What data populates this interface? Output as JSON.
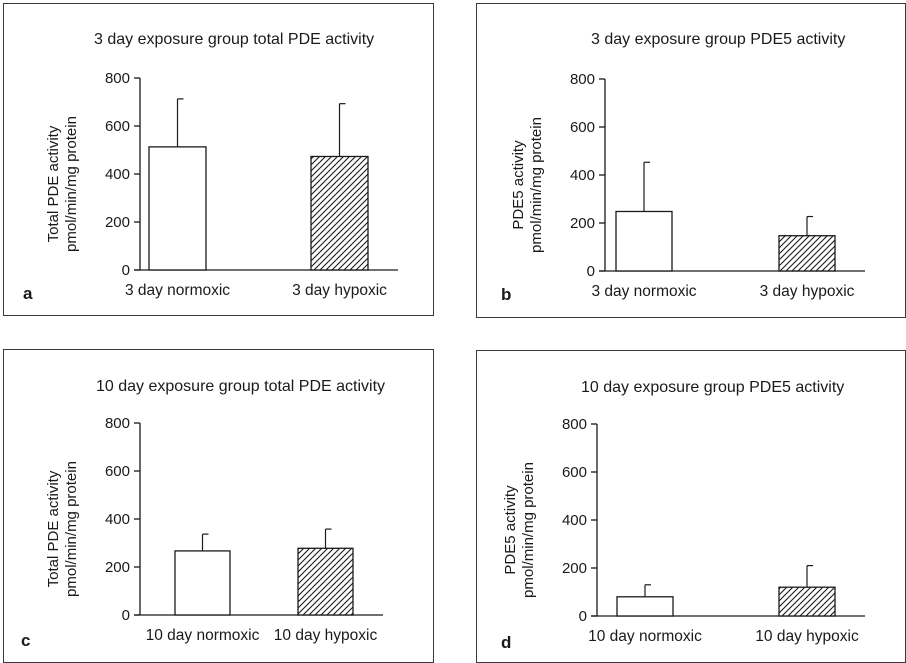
{
  "chart_data": [
    {
      "id": "a",
      "type": "bar",
      "panel_letter": "a",
      "title": "3 day exposure group total PDE activity",
      "ylabel": [
        "Total PDE activity",
        "pmol/min/mg protein"
      ],
      "categories": [
        "3 day normoxic",
        "3 day hypoxic"
      ],
      "values": [
        513,
        473
      ],
      "errors": [
        200,
        220
      ],
      "patterns": [
        "none",
        "hatched"
      ],
      "ylim": [
        0,
        800
      ],
      "yticks": [
        0,
        200,
        400,
        600,
        800
      ]
    },
    {
      "id": "b",
      "type": "bar",
      "panel_letter": "b",
      "title": "3 day exposure group PDE5 activity",
      "ylabel": [
        "PDE5 activity",
        "pmol/min/mg protein"
      ],
      "categories": [
        "3 day normoxic",
        "3 day hypoxic"
      ],
      "values": [
        248,
        147
      ],
      "errors": [
        205,
        80
      ],
      "patterns": [
        "none",
        "hatched"
      ],
      "ylim": [
        0,
        800
      ],
      "yticks": [
        0,
        200,
        400,
        600,
        800
      ]
    },
    {
      "id": "c",
      "type": "bar",
      "panel_letter": "c",
      "title": "10 day exposure group total PDE activity",
      "ylabel": [
        "Total PDE activity",
        "pmol/min/mg protein"
      ],
      "categories": [
        "10 day normoxic",
        "10 day hypoxic"
      ],
      "values": [
        267,
        278
      ],
      "errors": [
        70,
        80
      ],
      "patterns": [
        "none",
        "hatched"
      ],
      "ylim": [
        0,
        800
      ],
      "yticks": [
        0,
        200,
        400,
        600,
        800
      ]
    },
    {
      "id": "d",
      "type": "bar",
      "panel_letter": "d",
      "title": "10 day exposure group PDE5 activity",
      "ylabel": [
        "PDE5 activity",
        "pmol/min/mg protein"
      ],
      "categories": [
        "10 day normoxic",
        "10 day hypoxic"
      ],
      "values": [
        80,
        120
      ],
      "errors": [
        50,
        90
      ],
      "patterns": [
        "none",
        "hatched"
      ],
      "ylim": [
        0,
        800
      ],
      "yticks": [
        0,
        200,
        400,
        600,
        800
      ]
    }
  ]
}
